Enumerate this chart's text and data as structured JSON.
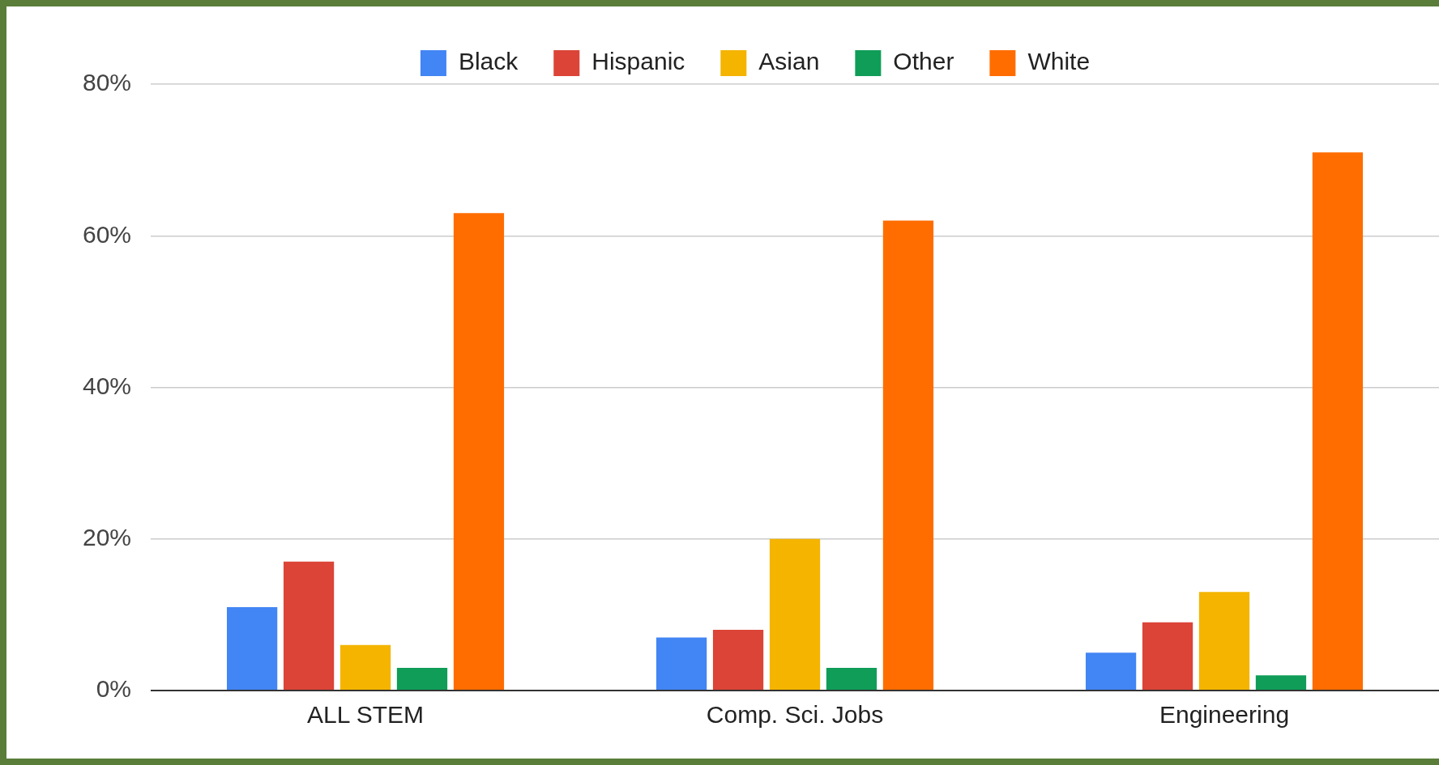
{
  "chart_data": {
    "type": "bar",
    "categories": [
      "ALL STEM",
      "Comp. Sci. Jobs",
      "Engineering"
    ],
    "series": [
      {
        "name": "Black",
        "color": "#4285f4",
        "values": [
          11,
          7,
          5
        ]
      },
      {
        "name": "Hispanic",
        "color": "#db4437",
        "values": [
          17,
          8,
          9
        ]
      },
      {
        "name": "Asian",
        "color": "#f4b400",
        "values": [
          6,
          20,
          13
        ]
      },
      {
        "name": "Other",
        "color": "#0f9d58",
        "values": [
          3,
          3,
          2
        ]
      },
      {
        "name": "White",
        "color": "#ff6d01",
        "values": [
          63,
          62,
          71
        ]
      }
    ],
    "ylim": [
      0,
      80
    ],
    "yticks": [
      {
        "value": 0,
        "label": "0%"
      },
      {
        "value": 20,
        "label": "20%"
      },
      {
        "value": 40,
        "label": "40%"
      },
      {
        "value": 60,
        "label": "60%"
      },
      {
        "value": 80,
        "label": "80%"
      }
    ],
    "grid": "y",
    "legend": "top"
  }
}
